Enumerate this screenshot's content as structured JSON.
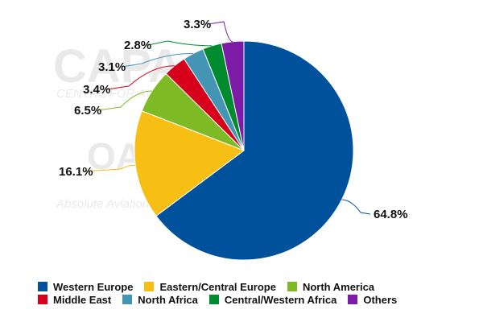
{
  "watermark": {
    "brand": "CAPA",
    "subtitle": "CENTRE FOR AVIATION",
    "mark": "OA",
    "tagline": "Absolute Aviation"
  },
  "chart_data": {
    "type": "pie",
    "start_angle_deg": 0,
    "direction": "clockwise",
    "slices": [
      {
        "name": "Western Europe",
        "value": 64.8,
        "label": "64.8%",
        "color": "#00519C"
      },
      {
        "name": "Eastern/Central Europe",
        "value": 16.1,
        "label": "16.1%",
        "color": "#F7BE14"
      },
      {
        "name": "North America",
        "value": 6.5,
        "label": "6.5%",
        "color": "#7EBA26"
      },
      {
        "name": "Middle East",
        "value": 3.4,
        "label": "3.4%",
        "color": "#D6001C"
      },
      {
        "name": "North Africa",
        "value": 3.1,
        "label": "3.1%",
        "color": "#4494B4"
      },
      {
        "name": "Central/Western Africa",
        "value": 2.8,
        "label": "2.8%",
        "color": "#008C2E"
      },
      {
        "name": "Others",
        "value": 3.3,
        "label": "3.3%",
        "color": "#7B1BA6"
      }
    ],
    "legend": {
      "position": "bottom",
      "rows": [
        [
          "Western Europe",
          "Eastern/Central Europe",
          "North America"
        ],
        [
          "Middle East",
          "North Africa",
          "Central/Western Africa",
          "Others"
        ]
      ]
    }
  }
}
